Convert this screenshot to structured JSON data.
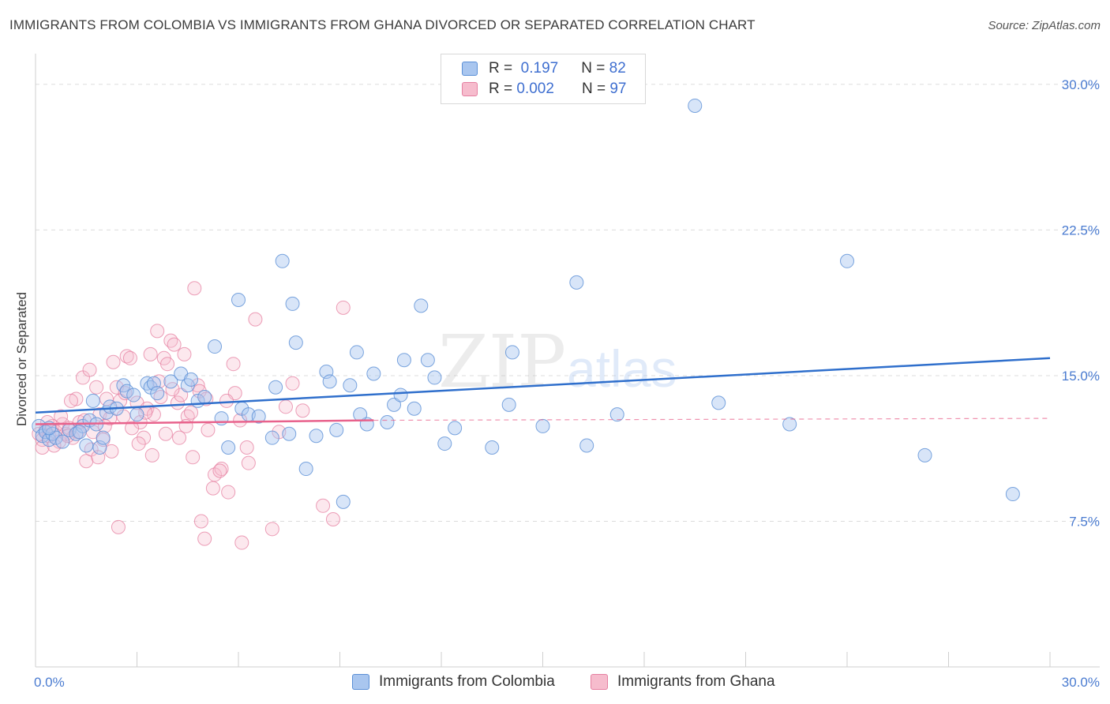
{
  "title": "IMMIGRANTS FROM COLOMBIA VS IMMIGRANTS FROM GHANA DIVORCED OR SEPARATED CORRELATION CHART",
  "source": "Source: ZipAtlas.com",
  "watermark": {
    "zip": "ZIP",
    "atlas": "atlas"
  },
  "legend": {
    "colombia": {
      "r_label": "R =",
      "r_value": "0.197",
      "n_label": "N =",
      "n_value": "82"
    },
    "ghana": {
      "r_label": "R =",
      "r_value": "0.002",
      "n_label": "N =",
      "n_value": "97"
    }
  },
  "bottom_legend": {
    "colombia": "Immigrants from Colombia",
    "ghana": "Immigrants from Ghana"
  },
  "colors": {
    "colombia_fill": "#a9c6ef",
    "colombia_stroke": "#5a8fd6",
    "colombia_line": "#2f6fcc",
    "ghana_fill": "#f6bccd",
    "ghana_stroke": "#e57fa0",
    "ghana_line": "#e8628c",
    "tick_text": "#4a7bd0"
  },
  "chart_data": {
    "type": "scatter",
    "title": "IMMIGRANTS FROM COLOMBIA VS IMMIGRANTS FROM GHANA DIVORCED OR SEPARATED CORRELATION CHART",
    "xlabel": "",
    "ylabel": "Divorced or Separated",
    "xlim": [
      0,
      30
    ],
    "ylim": [
      0,
      31.5
    ],
    "x_tick_labels": [
      "0.0%",
      "30.0%"
    ],
    "y_ticks": [
      7.5,
      15.0,
      22.5,
      30.0
    ],
    "y_tick_labels": [
      "7.5%",
      "15.0%",
      "22.5%",
      "30.0%"
    ],
    "series": [
      {
        "name": "Immigrants from Colombia",
        "trend": {
          "x": [
            0,
            30
          ],
          "y": [
            13.1,
            15.9
          ],
          "style": "solid"
        },
        "points": [
          [
            0.1,
            12.4
          ],
          [
            0.2,
            11.9
          ],
          [
            0.3,
            12.1
          ],
          [
            0.4,
            11.7
          ],
          [
            0.5,
            12.0
          ],
          [
            0.6,
            11.8
          ],
          [
            0.8,
            11.6
          ],
          [
            1.0,
            12.2
          ],
          [
            1.2,
            12.0
          ],
          [
            1.4,
            12.4
          ],
          [
            1.5,
            11.4
          ],
          [
            1.6,
            12.7
          ],
          [
            1.7,
            13.7
          ],
          [
            1.8,
            12.5
          ],
          [
            1.9,
            11.3
          ],
          [
            2.0,
            11.8
          ],
          [
            2.1,
            13.1
          ],
          [
            2.2,
            13.4
          ],
          [
            2.4,
            13.3
          ],
          [
            2.6,
            14.5
          ],
          [
            2.7,
            14.2
          ],
          [
            3.0,
            13.0
          ],
          [
            3.3,
            14.6
          ],
          [
            3.4,
            14.4
          ],
          [
            3.5,
            14.6
          ],
          [
            3.6,
            14.1
          ],
          [
            4.0,
            14.7
          ],
          [
            4.3,
            15.1
          ],
          [
            4.5,
            14.5
          ],
          [
            4.6,
            14.8
          ],
          [
            4.8,
            13.7
          ],
          [
            5.0,
            13.9
          ],
          [
            5.3,
            16.5
          ],
          [
            5.5,
            12.8
          ],
          [
            5.7,
            11.3
          ],
          [
            6.1,
            13.3
          ],
          [
            6.0,
            18.9
          ],
          [
            6.3,
            13.0
          ],
          [
            7.0,
            11.8
          ],
          [
            7.1,
            14.4
          ],
          [
            7.5,
            12.0
          ],
          [
            7.6,
            18.7
          ],
          [
            7.3,
            20.9
          ],
          [
            7.7,
            16.7
          ],
          [
            8.0,
            10.2
          ],
          [
            8.3,
            11.9
          ],
          [
            8.6,
            15.2
          ],
          [
            8.7,
            14.7
          ],
          [
            8.9,
            12.2
          ],
          [
            9.1,
            8.5
          ],
          [
            9.3,
            14.5
          ],
          [
            9.5,
            16.2
          ],
          [
            9.8,
            12.5
          ],
          [
            10.0,
            15.1
          ],
          [
            10.4,
            12.6
          ],
          [
            10.6,
            13.5
          ],
          [
            10.9,
            15.8
          ],
          [
            11.2,
            13.3
          ],
          [
            11.4,
            18.6
          ],
          [
            11.6,
            15.8
          ],
          [
            11.8,
            14.9
          ],
          [
            12.1,
            11.5
          ],
          [
            12.4,
            12.3
          ],
          [
            13.5,
            11.3
          ],
          [
            14.0,
            13.5
          ],
          [
            14.1,
            16.2
          ],
          [
            15.0,
            12.4
          ],
          [
            16.0,
            19.8
          ],
          [
            16.3,
            11.4
          ],
          [
            17.2,
            13.0
          ],
          [
            19.5,
            28.9
          ],
          [
            20.2,
            13.6
          ],
          [
            22.3,
            12.5
          ],
          [
            24.0,
            20.9
          ],
          [
            26.3,
            10.9
          ],
          [
            28.9,
            8.9
          ],
          [
            0.4,
            12.3
          ],
          [
            1.3,
            12.1
          ],
          [
            2.9,
            14.0
          ],
          [
            6.6,
            12.9
          ],
          [
            9.6,
            13.0
          ],
          [
            10.8,
            14.0
          ]
        ]
      },
      {
        "name": "Immigrants from Ghana",
        "trend": {
          "x": [
            0,
            10
          ],
          "y": [
            12.5,
            12.7
          ],
          "style": "solid",
          "extension": {
            "x": [
              10,
              30
            ],
            "y": [
              12.7,
              12.8
            ],
            "style": "dashed"
          }
        },
        "points": [
          [
            0.1,
            12.0
          ],
          [
            0.2,
            11.7
          ],
          [
            0.3,
            12.2
          ],
          [
            0.4,
            11.9
          ],
          [
            0.5,
            12.4
          ],
          [
            0.6,
            12.1
          ],
          [
            0.7,
            11.6
          ],
          [
            0.8,
            12.5
          ],
          [
            0.9,
            12.0
          ],
          [
            1.0,
            12.3
          ],
          [
            1.1,
            11.8
          ],
          [
            1.2,
            13.8
          ],
          [
            1.3,
            12.6
          ],
          [
            1.4,
            14.9
          ],
          [
            1.5,
            10.6
          ],
          [
            1.6,
            15.3
          ],
          [
            1.7,
            12.1
          ],
          [
            1.8,
            14.4
          ],
          [
            1.9,
            13.0
          ],
          [
            2.0,
            11.7
          ],
          [
            2.1,
            13.8
          ],
          [
            2.2,
            12.8
          ],
          [
            2.3,
            15.7
          ],
          [
            2.4,
            14.4
          ],
          [
            2.5,
            13.7
          ],
          [
            2.6,
            12.9
          ],
          [
            2.7,
            16.0
          ],
          [
            2.8,
            15.9
          ],
          [
            3.0,
            13.6
          ],
          [
            3.1,
            12.6
          ],
          [
            3.2,
            11.8
          ],
          [
            3.3,
            13.3
          ],
          [
            3.4,
            16.1
          ],
          [
            3.5,
            13.0
          ],
          [
            3.6,
            17.3
          ],
          [
            3.7,
            13.9
          ],
          [
            3.8,
            15.9
          ],
          [
            3.9,
            15.6
          ],
          [
            4.0,
            16.8
          ],
          [
            4.1,
            16.6
          ],
          [
            4.2,
            13.6
          ],
          [
            4.3,
            14.0
          ],
          [
            4.4,
            16.1
          ],
          [
            4.5,
            12.9
          ],
          [
            4.6,
            13.1
          ],
          [
            4.7,
            19.5
          ],
          [
            4.8,
            14.5
          ],
          [
            4.9,
            7.5
          ],
          [
            5.0,
            6.6
          ],
          [
            5.1,
            12.2
          ],
          [
            5.3,
            9.9
          ],
          [
            5.5,
            10.2
          ],
          [
            5.7,
            9.0
          ],
          [
            5.9,
            14.1
          ],
          [
            6.1,
            6.4
          ],
          [
            6.3,
            10.5
          ],
          [
            6.5,
            17.9
          ],
          [
            7.0,
            7.1
          ],
          [
            7.2,
            12.1
          ],
          [
            7.4,
            13.4
          ],
          [
            7.6,
            14.6
          ],
          [
            7.9,
            13.2
          ],
          [
            8.5,
            8.3
          ],
          [
            8.8,
            7.6
          ],
          [
            9.1,
            18.5
          ],
          [
            0.2,
            11.3
          ],
          [
            0.35,
            12.6
          ],
          [
            0.55,
            11.4
          ],
          [
            0.75,
            12.9
          ],
          [
            0.95,
            11.9
          ],
          [
            1.05,
            13.7
          ],
          [
            1.25,
            12.1
          ],
          [
            1.45,
            12.7
          ],
          [
            1.65,
            11.2
          ],
          [
            1.85,
            10.8
          ],
          [
            2.05,
            12.4
          ],
          [
            2.25,
            11.1
          ],
          [
            2.45,
            7.2
          ],
          [
            2.65,
            14.1
          ],
          [
            2.85,
            12.3
          ],
          [
            3.05,
            11.5
          ],
          [
            3.25,
            13.1
          ],
          [
            3.45,
            10.9
          ],
          [
            3.65,
            14.7
          ],
          [
            3.85,
            12.0
          ],
          [
            4.05,
            14.3
          ],
          [
            4.25,
            11.8
          ],
          [
            4.45,
            12.4
          ],
          [
            4.65,
            10.8
          ],
          [
            4.85,
            14.2
          ],
          [
            5.05,
            13.8
          ],
          [
            5.25,
            9.2
          ],
          [
            5.45,
            10.1
          ],
          [
            5.65,
            13.7
          ],
          [
            5.85,
            15.6
          ],
          [
            6.05,
            12.7
          ],
          [
            6.25,
            11.3
          ]
        ]
      }
    ]
  }
}
